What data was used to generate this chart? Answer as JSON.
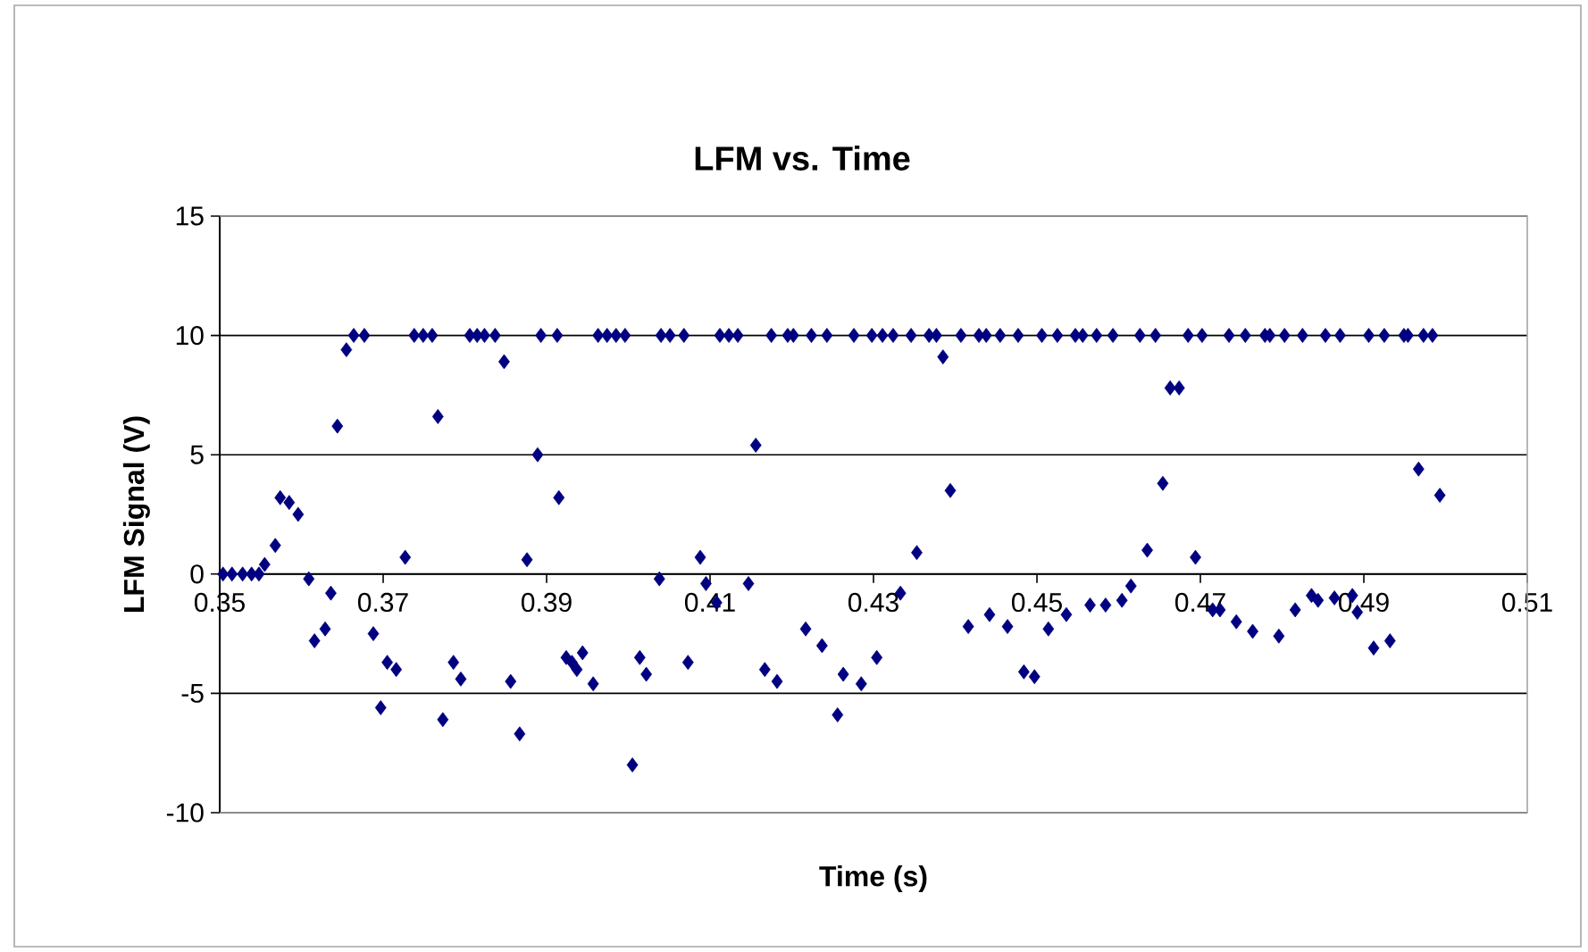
{
  "chart_data": {
    "type": "scatter",
    "title": "LFM vs. Time",
    "xlabel": "Time (s)",
    "ylabel": "LFM Signal (V)",
    "xlim": [
      0.35,
      0.51
    ],
    "ylim": [
      -10,
      15
    ],
    "xticks": [
      0.35,
      0.37,
      0.39,
      0.41,
      0.43,
      0.45,
      0.47,
      0.49,
      0.51
    ],
    "yticks": [
      -10,
      -5,
      0,
      5,
      10,
      15
    ],
    "grid": "y",
    "marker": "diamond",
    "series": [
      {
        "color": "#000080",
        "x": [
          0.3504,
          0.3515,
          0.3528,
          0.3539,
          0.3548,
          0.3555,
          0.3568,
          0.3574,
          0.3585,
          0.3596,
          0.3609,
          0.3616,
          0.3629,
          0.3636,
          0.3644,
          0.3655,
          0.3664,
          0.3677,
          0.3688,
          0.3697,
          0.3705,
          0.3716,
          0.3727,
          0.3738,
          0.3749,
          0.376,
          0.3767,
          0.3773,
          0.3786,
          0.3795,
          0.3806,
          0.3815,
          0.3824,
          0.3837,
          0.3848,
          0.3856,
          0.3867,
          0.3876,
          0.3889,
          0.3893,
          0.3913,
          0.3915,
          0.3924,
          0.3931,
          0.3937,
          0.3944,
          0.3957,
          0.3963,
          0.3974,
          0.3985,
          0.3996,
          0.4005,
          0.4014,
          0.4022,
          0.4038,
          0.404,
          0.4051,
          0.4068,
          0.4073,
          0.4088,
          0.4095,
          0.4108,
          0.4112,
          0.4123,
          0.4134,
          0.4147,
          0.4156,
          0.4167,
          0.4175,
          0.4182,
          0.4195,
          0.4202,
          0.4217,
          0.4224,
          0.4237,
          0.4243,
          0.4256,
          0.4263,
          0.4276,
          0.4285,
          0.4298,
          0.4304,
          0.4311,
          0.4324,
          0.4333,
          0.4346,
          0.4353,
          0.4368,
          0.4377,
          0.4385,
          0.4394,
          0.4407,
          0.4416,
          0.4429,
          0.4438,
          0.4442,
          0.4455,
          0.4464,
          0.4477,
          0.4484,
          0.4497,
          0.4506,
          0.4514,
          0.4525,
          0.4536,
          0.4547,
          0.4556,
          0.4565,
          0.4573,
          0.4584,
          0.4593,
          0.4604,
          0.4615,
          0.4626,
          0.4635,
          0.4645,
          0.4654,
          0.4663,
          0.4674,
          0.4685,
          0.4694,
          0.4702,
          0.4715,
          0.4724,
          0.4735,
          0.4744,
          0.4755,
          0.4764,
          0.4779,
          0.4785,
          0.4796,
          0.4803,
          0.4816,
          0.4825,
          0.4836,
          0.4844,
          0.4853,
          0.4864,
          0.4871,
          0.4886,
          0.4892,
          0.4906,
          0.4912,
          0.4925,
          0.4932,
          0.4949,
          0.4954,
          0.4967,
          0.4973,
          0.4984,
          0.4993
        ],
        "values": [
          0,
          0,
          0,
          0,
          0,
          0.4,
          1.2,
          3.2,
          3.0,
          2.5,
          -0.2,
          -2.8,
          -2.3,
          -0.8,
          6.2,
          9.4,
          10,
          10,
          -2.5,
          -5.6,
          -3.7,
          -4.0,
          0.7,
          10,
          10,
          10,
          6.6,
          -6.1,
          -3.7,
          -4.4,
          10,
          10,
          10,
          10,
          8.9,
          -4.5,
          -6.7,
          0.6,
          5.0,
          10,
          10,
          3.2,
          -3.5,
          -3.7,
          -4.0,
          -3.3,
          -4.6,
          10,
          10,
          10,
          10,
          -8.0,
          -3.5,
          -4.2,
          -0.2,
          10,
          10,
          10,
          -3.7,
          0.7,
          -0.4,
          -1.2,
          10,
          10,
          10,
          -0.4,
          5.4,
          -4.0,
          10,
          -4.5,
          10,
          10,
          -2.3,
          10,
          -3.0,
          10,
          -5.9,
          -4.2,
          10,
          -4.6,
          10,
          -3.5,
          10,
          10,
          -0.8,
          10,
          0.9,
          10,
          10,
          9.1,
          3.5,
          10,
          -2.2,
          10,
          10,
          -1.7,
          10,
          -2.2,
          10,
          -4.1,
          -4.3,
          10,
          -2.3,
          10,
          -1.7,
          10,
          10,
          -1.3,
          10,
          -1.3,
          10,
          -1.1,
          -0.5,
          10,
          1.0,
          10,
          3.8,
          7.8,
          7.8,
          10,
          0.7,
          10,
          -1.5,
          -1.5,
          10,
          -2.0,
          10,
          -2.4,
          10,
          10,
          -2.6,
          10,
          -1.5,
          10,
          -0.9,
          -1.1,
          10,
          -1.0,
          10,
          -0.9,
          -1.6,
          10,
          -3.1,
          10,
          -2.8,
          10,
          10,
          4.4,
          10,
          10,
          3.3
        ]
      }
    ]
  }
}
